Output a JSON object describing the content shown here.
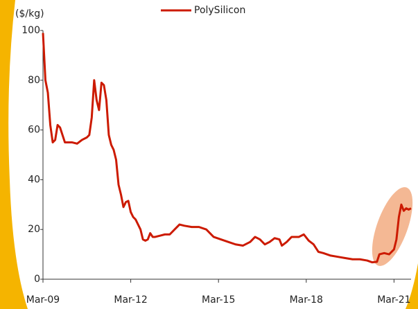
{
  "chart_data": {
    "type": "line",
    "y_label": "($/kg)",
    "x": [
      "2009-03",
      "2009-04",
      "2009-05",
      "2009-06",
      "2009-07",
      "2009-08",
      "2009-09",
      "2009-10",
      "2009-11",
      "2009-12",
      "2010-01",
      "2010-03",
      "2010-05",
      "2010-07",
      "2010-09",
      "2010-10",
      "2010-11",
      "2010-12",
      "2011-01",
      "2011-02",
      "2011-03",
      "2011-04",
      "2011-05",
      "2011-06",
      "2011-07",
      "2011-08",
      "2011-09",
      "2011-10",
      "2011-11",
      "2011-12",
      "2012-01",
      "2012-02",
      "2012-03",
      "2012-04",
      "2012-05",
      "2012-06",
      "2012-07",
      "2012-08",
      "2012-09",
      "2012-10",
      "2012-11",
      "2012-12",
      "2013-01",
      "2013-03",
      "2013-05",
      "2013-07",
      "2013-09",
      "2013-11",
      "2014-01",
      "2014-04",
      "2014-07",
      "2014-10",
      "2015-01",
      "2015-04",
      "2015-07",
      "2015-10",
      "2016-01",
      "2016-04",
      "2016-06",
      "2016-08",
      "2016-10",
      "2016-12",
      "2017-02",
      "2017-04",
      "2017-05",
      "2017-07",
      "2017-09",
      "2017-12",
      "2018-02",
      "2018-04",
      "2018-06",
      "2018-08",
      "2018-10",
      "2019-01",
      "2019-04",
      "2019-07",
      "2019-10",
      "2020-01",
      "2020-04",
      "2020-06",
      "2020-08",
      "2020-09",
      "2020-11",
      "2021-01",
      "2021-03",
      "2021-04",
      "2021-05",
      "2021-06",
      "2021-07",
      "2021-08",
      "2021-09",
      "2021-10"
    ],
    "series": [
      {
        "name": "PolySilicon",
        "color": "#cc1a00",
        "values": [
          99,
          80,
          75,
          62,
          55,
          56,
          62,
          61,
          58,
          55,
          55,
          55,
          54.5,
          56,
          57,
          58,
          65,
          80,
          72,
          68,
          79,
          78,
          72,
          58,
          54,
          52,
          48,
          38,
          34,
          29,
          31,
          31.5,
          27,
          25,
          24,
          22,
          20,
          16,
          15.5,
          16,
          18.5,
          17,
          17,
          17.5,
          18,
          18,
          20,
          22,
          21.5,
          21,
          21,
          20,
          17,
          16,
          15,
          14,
          13.5,
          15,
          17,
          16,
          14,
          15,
          16.5,
          16,
          13.5,
          15,
          17,
          17,
          18,
          15.5,
          14,
          11,
          10.5,
          9.5,
          9,
          8.5,
          8,
          8,
          7.5,
          6.8,
          7,
          10,
          10.5,
          10,
          12,
          16,
          25,
          30,
          27.5,
          28.5,
          28,
          28.5
        ]
      }
    ],
    "ylim": [
      0,
      100
    ],
    "yticks": [
      0,
      20,
      40,
      60,
      80,
      100
    ],
    "xlim": [
      "2009-03",
      "2021-10"
    ],
    "xticks": [
      {
        "value": "2009-03",
        "label": "Mar-09"
      },
      {
        "value": "2012-03",
        "label": "Mar-12"
      },
      {
        "value": "2015-03",
        "label": "Mar-15"
      },
      {
        "value": "2018-03",
        "label": "Mar-18"
      },
      {
        "value": "2021-03",
        "label": "Mar-21"
      }
    ],
    "legend": "top"
  }
}
